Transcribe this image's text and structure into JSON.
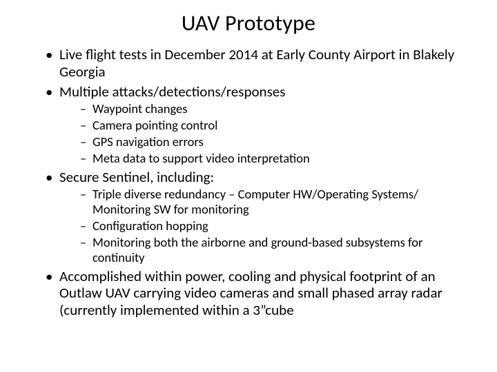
{
  "title": "UAV Prototype",
  "colors": {
    "background": "#ffffff",
    "text": "#000000"
  },
  "typography": {
    "title_fontsize": 32,
    "l1_fontsize": 21,
    "l2_fontsize": 18.5,
    "font_family": "Calibri"
  },
  "bullets": {
    "b1": "Live flight tests in December 2014 at Early County Airport in Blakely Georgia",
    "b2": "Multiple attacks/detections/responses",
    "b2_sub": {
      "s1": "Waypoint changes",
      "s2": "Camera pointing control",
      "s3": "GPS navigation errors",
      "s4": "Meta data to support video interpretation"
    },
    "b3": "Secure Sentinel, including:",
    "b3_sub": {
      "s1": "Triple diverse redundancy – Computer HW/Operating Systems/ Monitoring SW for monitoring",
      "s2": "Configuration hopping",
      "s3": "Monitoring both the airborne and ground-based subsystems for continuity"
    },
    "b4": "Accomplished within power, cooling and physical footprint of an Outlaw UAV carrying video cameras and small phased array radar (currently implemented within a 3”cube"
  }
}
